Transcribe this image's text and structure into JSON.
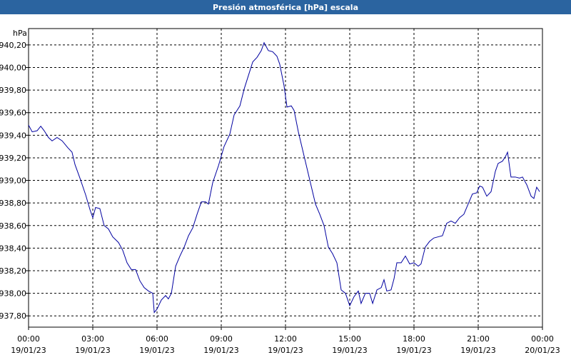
{
  "chart_data": {
    "type": "line",
    "title": "Presión atmosférica [hPa] escala",
    "y_unit": "hPa",
    "xlim": [
      0,
      24
    ],
    "ylim": [
      937.7,
      940.345
    ],
    "grid": true,
    "xticks": [
      {
        "value": 0,
        "label": "00:00",
        "sublabel": "19/01/23"
      },
      {
        "value": 3,
        "label": "03:00",
        "sublabel": "19/01/23"
      },
      {
        "value": 6,
        "label": "06:00",
        "sublabel": "19/01/23"
      },
      {
        "value": 9,
        "label": "09:00",
        "sublabel": "19/01/23"
      },
      {
        "value": 12,
        "label": "12:00",
        "sublabel": "19/01/23"
      },
      {
        "value": 15,
        "label": "15:00",
        "sublabel": "19/01/23"
      },
      {
        "value": 18,
        "label": "18:00",
        "sublabel": "19/01/23"
      },
      {
        "value": 21,
        "label": "21:00",
        "sublabel": "19/01/23"
      },
      {
        "value": 24,
        "label": "00:00",
        "sublabel": "20/01/23"
      }
    ],
    "yticks": [
      {
        "value": 937.8,
        "label": "937,80"
      },
      {
        "value": 938.0,
        "label": "938,00"
      },
      {
        "value": 938.2,
        "label": "938,20"
      },
      {
        "value": 938.4,
        "label": "938,40"
      },
      {
        "value": 938.6,
        "label": "938,60"
      },
      {
        "value": 938.8,
        "label": "938,80"
      },
      {
        "value": 939.0,
        "label": "939,00"
      },
      {
        "value": 939.2,
        "label": "939,20"
      },
      {
        "value": 939.4,
        "label": "939,40"
      },
      {
        "value": 939.6,
        "label": "939,60"
      },
      {
        "value": 939.8,
        "label": "939,80"
      },
      {
        "value": 940.0,
        "label": "940,00"
      },
      {
        "value": 940.2,
        "label": "940,20"
      }
    ],
    "x": [
      0,
      0.17,
      0.4,
      0.57,
      0.73,
      0.93,
      1.1,
      1.33,
      1.57,
      1.83,
      2.03,
      2.17,
      2.4,
      2.67,
      2.87,
      3,
      3.13,
      3.33,
      3.53,
      3.73,
      3.93,
      4.2,
      4.4,
      4.6,
      4.8,
      5,
      5.2,
      5.4,
      5.6,
      5.8,
      5.87,
      6,
      6.2,
      6.4,
      6.53,
      6.67,
      6.87,
      7.07,
      7.27,
      7.47,
      7.67,
      7.87,
      8.07,
      8.27,
      8.4,
      8.6,
      8.87,
      9.13,
      9.4,
      9.6,
      9.87,
      10.07,
      10.27,
      10.47,
      10.67,
      10.87,
      11,
      11.2,
      11.4,
      11.6,
      11.73,
      11.93,
      12.07,
      12.27,
      12.4,
      12.6,
      12.8,
      13,
      13.2,
      13.4,
      13.6,
      13.8,
      14,
      14.2,
      14.4,
      14.6,
      14.8,
      15,
      15.2,
      15.4,
      15.53,
      15.73,
      15.93,
      16.07,
      16.27,
      16.47,
      16.6,
      16.73,
      16.93,
      17.07,
      17.2,
      17.4,
      17.6,
      17.8,
      18,
      18.2,
      18.33,
      18.53,
      18.73,
      18.93,
      19.13,
      19.33,
      19.53,
      19.73,
      19.93,
      20.13,
      20.33,
      20.53,
      20.73,
      20.93,
      21.07,
      21.2,
      21.4,
      21.6,
      21.8,
      21.93,
      22.13,
      22.27,
      22.37,
      22.53,
      22.73,
      22.93,
      23.07,
      23.27,
      23.47,
      23.6,
      23.73,
      23.87
    ],
    "series": [
      {
        "name": "Presión",
        "color": "#0000a0",
        "values": [
          939.49,
          939.43,
          939.44,
          939.48,
          939.44,
          939.38,
          939.35,
          939.38,
          939.35,
          939.29,
          939.25,
          939.14,
          939.02,
          938.87,
          938.74,
          938.67,
          938.76,
          938.75,
          938.6,
          938.57,
          938.5,
          938.45,
          938.38,
          938.27,
          938.21,
          938.21,
          938.11,
          938.05,
          938.02,
          938.0,
          937.83,
          937.86,
          937.94,
          937.98,
          937.95,
          938.0,
          938.24,
          938.33,
          938.41,
          938.51,
          938.58,
          938.7,
          938.81,
          938.81,
          938.79,
          938.98,
          939.13,
          939.3,
          939.41,
          939.58,
          939.66,
          939.81,
          939.93,
          940.05,
          940.09,
          940.15,
          940.22,
          940.15,
          940.14,
          940.1,
          940.03,
          939.84,
          939.65,
          939.66,
          939.62,
          939.43,
          939.27,
          939.11,
          938.95,
          938.79,
          938.7,
          938.6,
          938.41,
          938.35,
          938.27,
          938.03,
          938.0,
          937.89,
          937.97,
          938.02,
          937.91,
          938.0,
          938.0,
          937.91,
          938.03,
          938.05,
          938.12,
          938.02,
          938.03,
          938.13,
          938.27,
          938.27,
          938.33,
          938.26,
          938.27,
          938.24,
          938.26,
          938.41,
          938.46,
          938.49,
          938.5,
          938.51,
          938.62,
          938.64,
          938.62,
          938.67,
          938.7,
          938.79,
          938.88,
          938.89,
          938.95,
          938.94,
          938.86,
          938.9,
          939.08,
          939.15,
          939.17,
          939.21,
          939.25,
          939.03,
          939.03,
          939.02,
          939.03,
          938.96,
          938.86,
          938.84,
          938.94,
          938.9
        ]
      }
    ]
  }
}
